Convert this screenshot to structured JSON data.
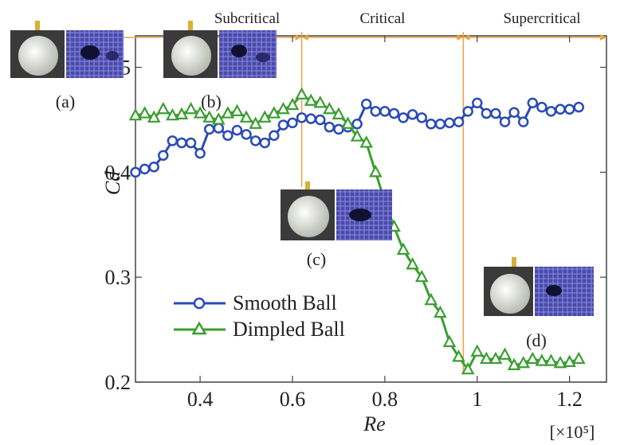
{
  "chart_data": {
    "type": "line",
    "xlabel": "Re",
    "x_unit": "[×10⁵]",
    "ylabel": "Cd",
    "xlim": [
      0.26,
      1.28
    ],
    "ylim": [
      0.2,
      0.53
    ],
    "x_ticks": [
      "0.4",
      "0.6",
      "0.8",
      "1",
      "1.2"
    ],
    "x_tick_values": [
      0.4,
      0.6,
      0.8,
      1.0,
      1.2
    ],
    "y_ticks": [
      "0.2",
      "0.3",
      "0.4",
      "0.5"
    ],
    "y_tick_values": [
      0.2,
      0.3,
      0.4,
      0.5
    ],
    "regions": [
      {
        "label": "Subcritical",
        "from": 0.26,
        "to": 0.62
      },
      {
        "label": "Critical",
        "from": 0.62,
        "to": 0.97
      },
      {
        "label": "Supercritical",
        "from": 0.97,
        "to": 1.28
      }
    ],
    "region_boundaries": [
      0.62,
      0.97
    ],
    "region_color": "#f0a040",
    "series": [
      {
        "name": "Smooth Ball",
        "color": "#2a4bb5",
        "marker": "circle",
        "x": [
          0.26,
          0.28,
          0.3,
          0.32,
          0.34,
          0.36,
          0.38,
          0.4,
          0.42,
          0.44,
          0.46,
          0.48,
          0.5,
          0.52,
          0.54,
          0.56,
          0.58,
          0.6,
          0.62,
          0.64,
          0.66,
          0.68,
          0.7,
          0.72,
          0.74,
          0.76,
          0.78,
          0.8,
          0.82,
          0.84,
          0.86,
          0.88,
          0.9,
          0.92,
          0.94,
          0.96,
          0.98,
          1.0,
          1.02,
          1.04,
          1.06,
          1.08,
          1.1,
          1.12,
          1.14,
          1.16,
          1.18,
          1.2,
          1.22
        ],
        "values": [
          0.4,
          0.403,
          0.405,
          0.416,
          0.43,
          0.428,
          0.428,
          0.418,
          0.441,
          0.442,
          0.435,
          0.44,
          0.436,
          0.43,
          0.428,
          0.435,
          0.445,
          0.447,
          0.452,
          0.451,
          0.45,
          0.443,
          0.441,
          0.443,
          0.446,
          0.465,
          0.458,
          0.458,
          0.456,
          0.452,
          0.455,
          0.452,
          0.446,
          0.446,
          0.447,
          0.448,
          0.458,
          0.466,
          0.456,
          0.456,
          0.448,
          0.457,
          0.448,
          0.466,
          0.462,
          0.458,
          0.46,
          0.46,
          0.462
        ]
      },
      {
        "name": "Dimpled Ball",
        "color": "#3a9e32",
        "marker": "triangle",
        "x": [
          0.26,
          0.28,
          0.3,
          0.32,
          0.34,
          0.36,
          0.38,
          0.4,
          0.42,
          0.44,
          0.46,
          0.48,
          0.5,
          0.52,
          0.54,
          0.56,
          0.58,
          0.6,
          0.62,
          0.64,
          0.66,
          0.68,
          0.7,
          0.72,
          0.74,
          0.76,
          0.78,
          0.8,
          0.82,
          0.84,
          0.86,
          0.88,
          0.9,
          0.92,
          0.94,
          0.96,
          0.98,
          1.0,
          1.02,
          1.04,
          1.06,
          1.08,
          1.1,
          1.12,
          1.14,
          1.16,
          1.18,
          1.2,
          1.22
        ],
        "values": [
          0.454,
          0.456,
          0.452,
          0.46,
          0.454,
          0.455,
          0.46,
          0.456,
          0.452,
          0.45,
          0.456,
          0.458,
          0.452,
          0.446,
          0.452,
          0.456,
          0.46,
          0.464,
          0.474,
          0.468,
          0.466,
          0.46,
          0.455,
          0.446,
          0.434,
          0.428,
          0.4,
          0.372,
          0.348,
          0.326,
          0.312,
          0.3,
          0.278,
          0.266,
          0.238,
          0.224,
          0.212,
          0.229,
          0.222,
          0.222,
          0.226,
          0.216,
          0.218,
          0.222,
          0.22,
          0.22,
          0.218,
          0.219,
          0.222
        ]
      }
    ],
    "annotations": [
      "(a)",
      "(b)",
      "(c)",
      "(d)"
    ]
  }
}
